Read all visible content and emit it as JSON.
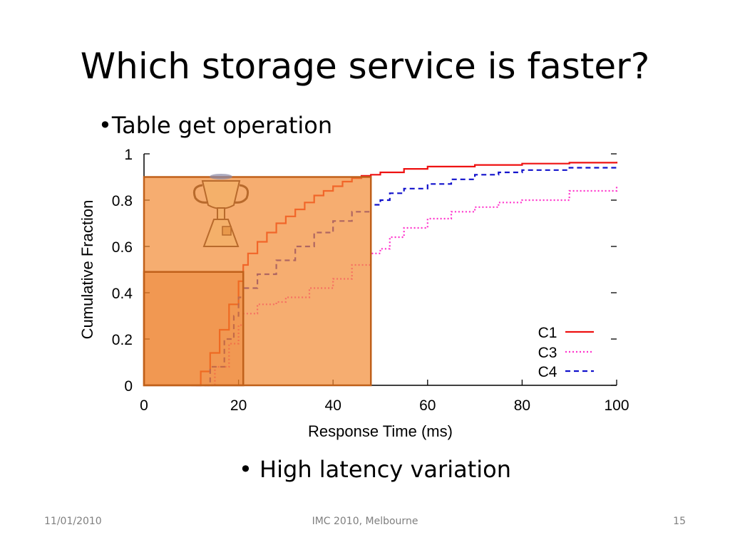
{
  "slide": {
    "title": "Which storage service is faster?",
    "bullets": [
      "•Table get operation",
      "• High latency variation"
    ],
    "footer": {
      "date": "11/01/2010",
      "center": "IMC 2010, Melbourne",
      "page": "15"
    }
  },
  "chart_data": {
    "type": "line",
    "title": "",
    "xlabel": "Response Time (ms)",
    "ylabel": "Cumulative Fraction",
    "xlim": [
      0,
      100
    ],
    "ylim": [
      0,
      1
    ],
    "xticks": [
      0,
      20,
      40,
      60,
      80,
      100
    ],
    "yticks": [
      0,
      0.2,
      0.4,
      0.6,
      0.8,
      1
    ],
    "ytick_labels": [
      "0",
      "0.2",
      "0.4",
      "0.6",
      "0.8",
      "1"
    ],
    "legend_position": "bottom-right",
    "series": [
      {
        "name": "C1",
        "color": "#ee1111",
        "style": "solid",
        "x": [
          10,
          12,
          14,
          16,
          18,
          20,
          21,
          22,
          24,
          26,
          28,
          30,
          32,
          34,
          36,
          38,
          40,
          42,
          44,
          46,
          48,
          50,
          55,
          60,
          70,
          80,
          90,
          100
        ],
        "y": [
          0.0,
          0.06,
          0.14,
          0.24,
          0.35,
          0.45,
          0.52,
          0.57,
          0.62,
          0.66,
          0.7,
          0.73,
          0.76,
          0.79,
          0.82,
          0.84,
          0.86,
          0.88,
          0.895,
          0.905,
          0.91,
          0.92,
          0.935,
          0.945,
          0.952,
          0.958,
          0.962,
          0.966
        ]
      },
      {
        "name": "C3",
        "color": "#ff33cc",
        "style": "dotted",
        "x": [
          12,
          15,
          18,
          20,
          21,
          24,
          28,
          30,
          35,
          40,
          44,
          48,
          50,
          52,
          55,
          60,
          65,
          70,
          75,
          80,
          90,
          100
        ],
        "y": [
          0.0,
          0.08,
          0.18,
          0.26,
          0.31,
          0.35,
          0.36,
          0.38,
          0.42,
          0.46,
          0.52,
          0.57,
          0.59,
          0.64,
          0.68,
          0.72,
          0.75,
          0.77,
          0.79,
          0.8,
          0.84,
          0.86
        ]
      },
      {
        "name": "C4",
        "color": "#1111cc",
        "style": "dashed",
        "x": [
          11,
          14,
          17,
          19,
          20,
          21,
          24,
          28,
          32,
          36,
          40,
          44,
          48,
          50,
          52,
          55,
          60,
          65,
          70,
          75,
          80,
          90,
          100
        ],
        "y": [
          0.0,
          0.08,
          0.2,
          0.3,
          0.38,
          0.42,
          0.48,
          0.54,
          0.6,
          0.66,
          0.71,
          0.75,
          0.78,
          0.8,
          0.83,
          0.85,
          0.87,
          0.89,
          0.91,
          0.92,
          0.93,
          0.94,
          0.95
        ]
      }
    ],
    "annotations": [
      {
        "type": "highlight-box",
        "x0": 0,
        "x1": 48,
        "y0": 0,
        "y1": 0.9,
        "color": "#f28a33"
      },
      {
        "type": "highlight-box",
        "x0": 0,
        "x1": 21,
        "y0": 0,
        "y1": 0.49,
        "color": "#e8731a"
      },
      {
        "type": "trophy-icon"
      }
    ]
  }
}
